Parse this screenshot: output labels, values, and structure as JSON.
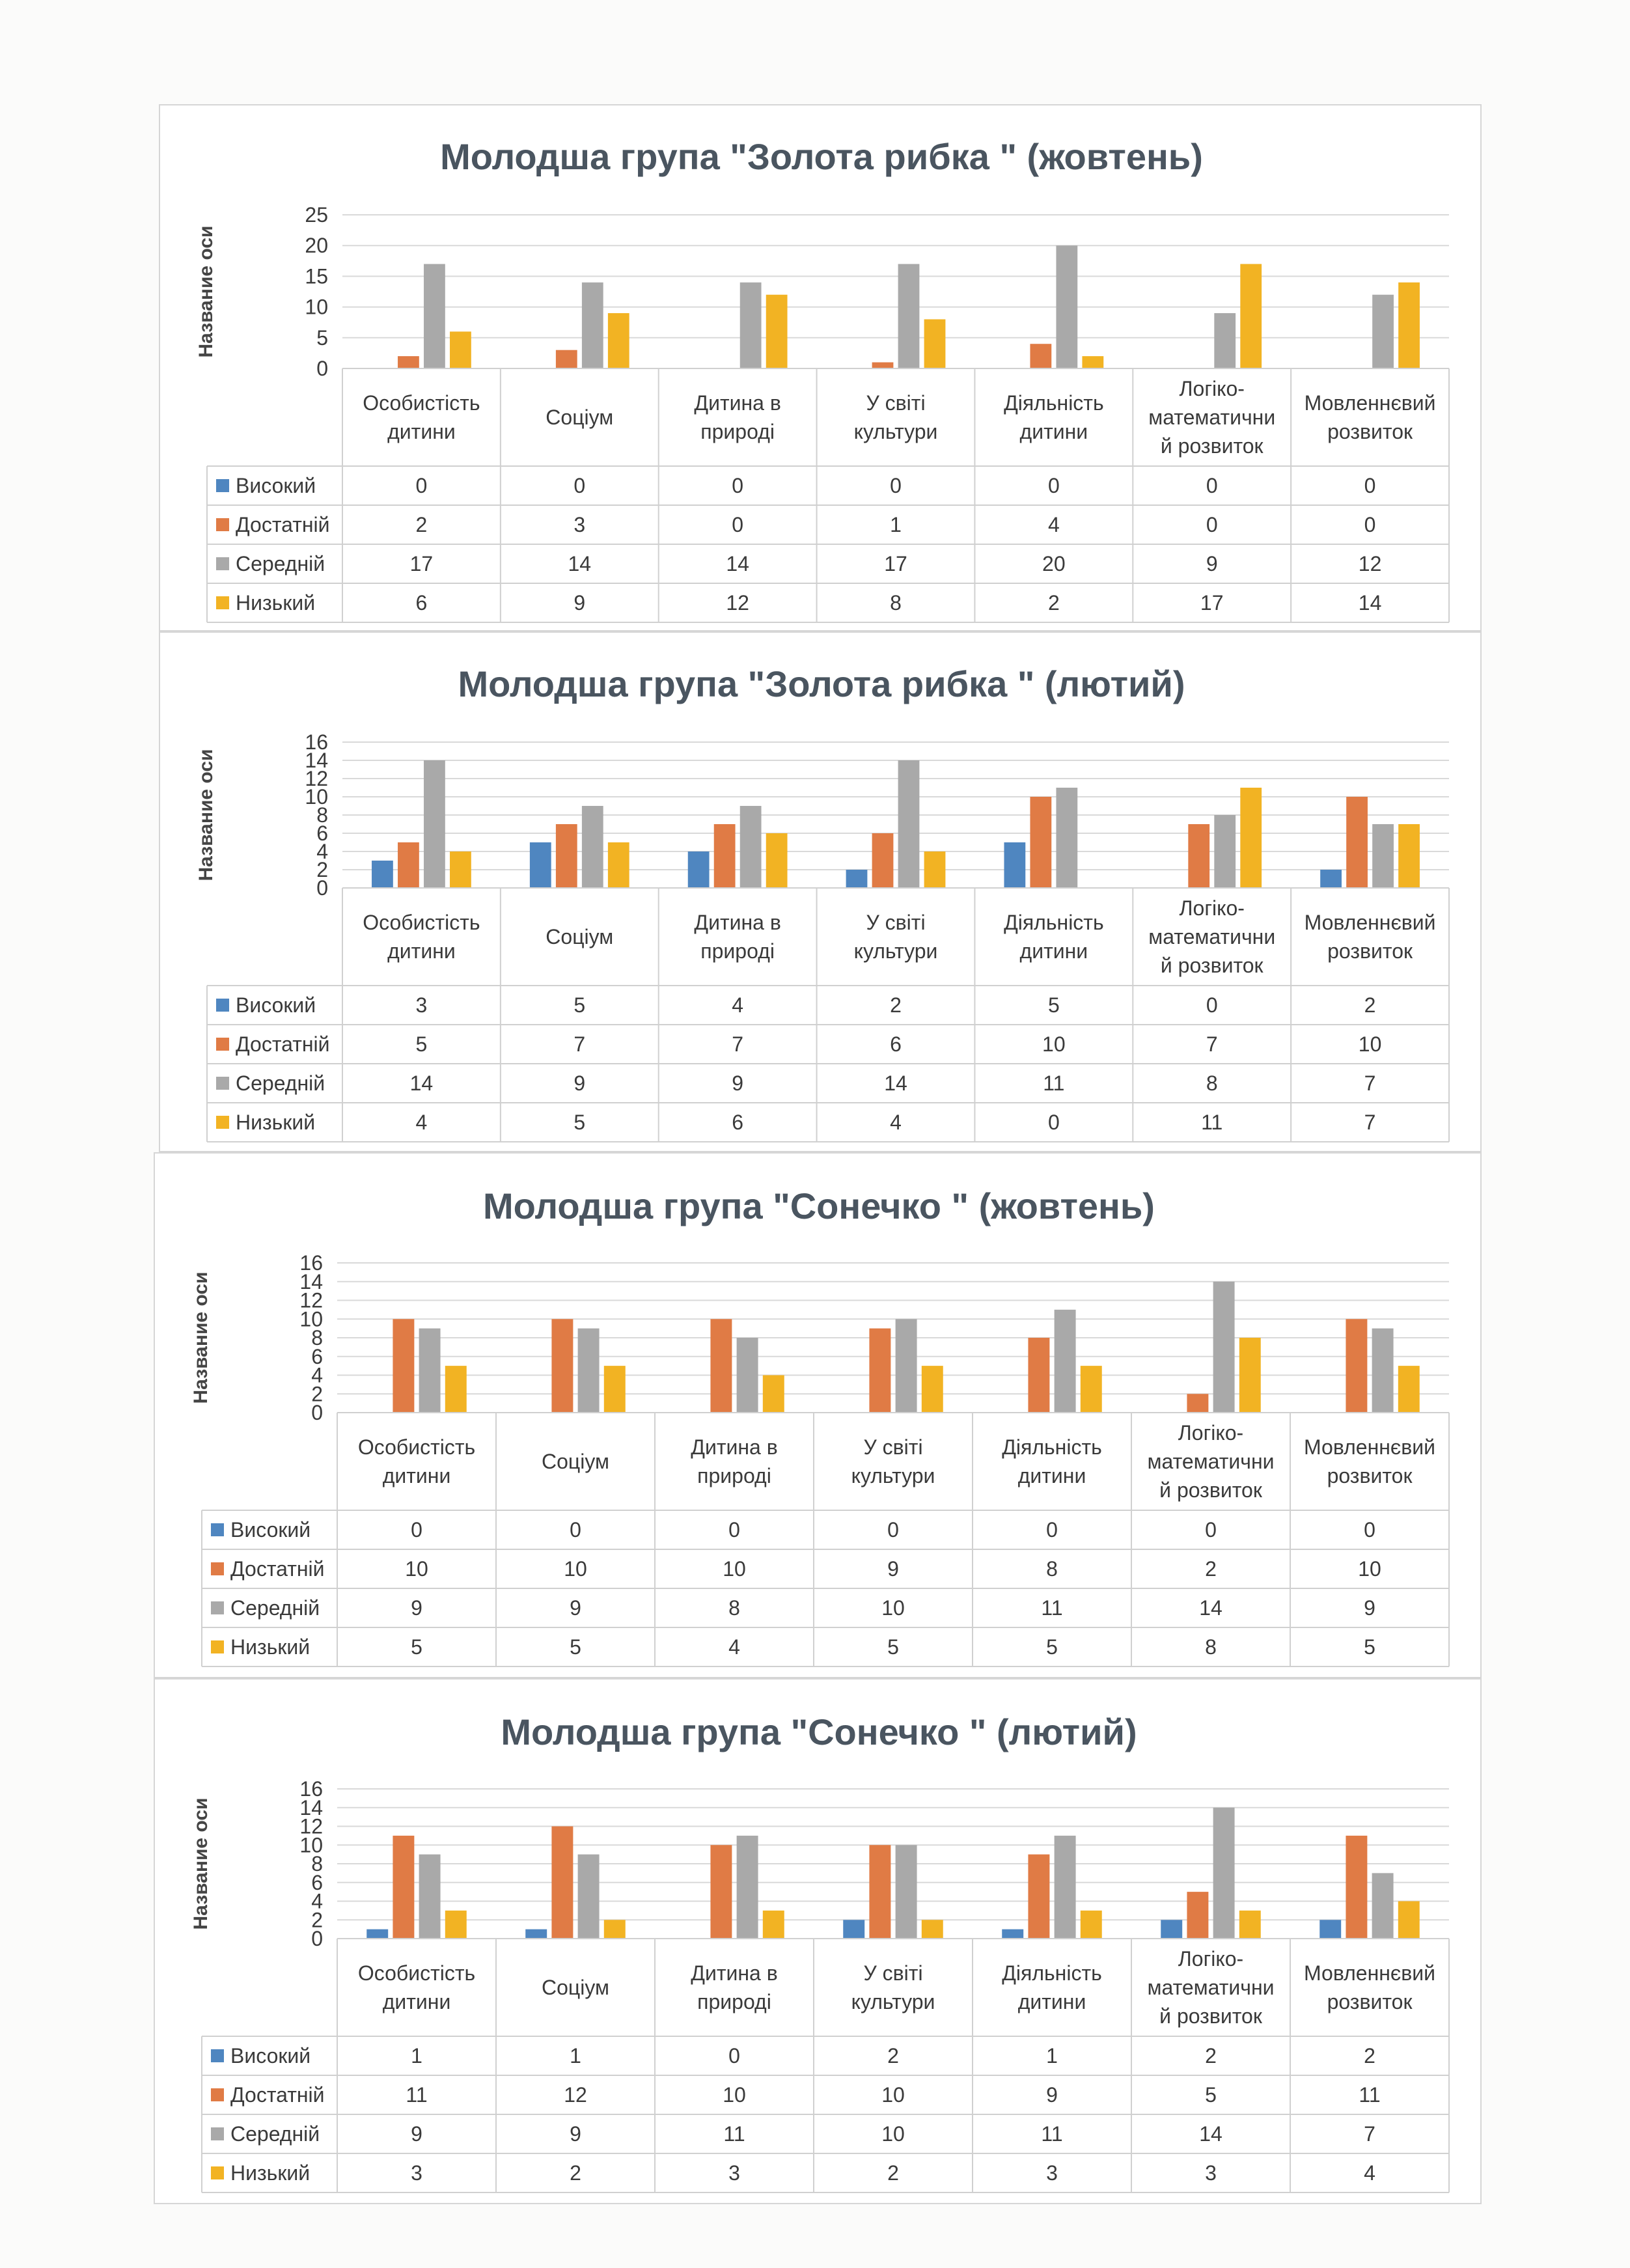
{
  "colors": {
    "Високий": "#4f86c0",
    "Достатній": "#e07b45",
    "Середній": "#a9a9a9",
    "Низький": "#f2b323"
  },
  "chart_data": [
    {
      "type": "bar",
      "title": "Молодша група \"Золота рибка \" (жовтень)",
      "ylabel": "Название оси",
      "xlabel": "",
      "ylim": [
        0,
        25
      ],
      "yticks": [
        0,
        5,
        10,
        15,
        20,
        25
      ],
      "grid": true,
      "legend": "table",
      "categories": [
        [
          "Особистість",
          "дитини"
        ],
        [
          "Соціум"
        ],
        [
          "Дитина в",
          "природі"
        ],
        [
          "У світі",
          "культури"
        ],
        [
          "Діяльність",
          "дитини"
        ],
        [
          "Логіко-",
          "математични",
          "й розвиток"
        ],
        [
          "Мовленнєвий",
          "розвиток"
        ]
      ],
      "series": [
        {
          "name": "Високий",
          "values": [
            0,
            0,
            0,
            0,
            0,
            0,
            0
          ]
        },
        {
          "name": "Достатній",
          "values": [
            2,
            3,
            0,
            1,
            4,
            0,
            0
          ]
        },
        {
          "name": "Середній",
          "values": [
            17,
            14,
            14,
            17,
            20,
            9,
            12
          ]
        },
        {
          "name": "Низький",
          "values": [
            6,
            9,
            12,
            8,
            2,
            17,
            14
          ]
        }
      ]
    },
    {
      "type": "bar",
      "title": "Молодша група \"Золота рибка \" (лютий)",
      "ylabel": "Название оси",
      "xlabel": "",
      "ylim": [
        0,
        16
      ],
      "yticks": [
        0,
        2,
        4,
        6,
        8,
        10,
        12,
        14,
        16
      ],
      "grid": true,
      "legend": "table",
      "categories": [
        [
          "Особистість",
          "дитини"
        ],
        [
          "Соціум"
        ],
        [
          "Дитина в",
          "природі"
        ],
        [
          "У світі",
          "культури"
        ],
        [
          "Діяльність",
          "дитини"
        ],
        [
          "Логіко-",
          "математични",
          "й розвиток"
        ],
        [
          "Мовленнєвий",
          "розвиток"
        ]
      ],
      "series": [
        {
          "name": "Високий",
          "values": [
            3,
            5,
            4,
            2,
            5,
            0,
            2
          ]
        },
        {
          "name": "Достатній",
          "values": [
            5,
            7,
            7,
            6,
            10,
            7,
            10
          ]
        },
        {
          "name": "Середній",
          "values": [
            14,
            9,
            9,
            14,
            11,
            8,
            7
          ]
        },
        {
          "name": "Низький",
          "values": [
            4,
            5,
            6,
            4,
            0,
            11,
            7
          ]
        }
      ]
    },
    {
      "type": "bar",
      "title": "Молодша група \"Сонечко \" (жовтень)",
      "ylabel": "Название оси",
      "xlabel": "",
      "ylim": [
        0,
        16
      ],
      "yticks": [
        0,
        2,
        4,
        6,
        8,
        10,
        12,
        14,
        16
      ],
      "grid": true,
      "legend": "table",
      "categories": [
        [
          "Особистість",
          "дитини"
        ],
        [
          "Соціум"
        ],
        [
          "Дитина в",
          "природі"
        ],
        [
          "У світі",
          "культури"
        ],
        [
          "Діяльність",
          "дитини"
        ],
        [
          "Логіко-",
          "математични",
          "й розвиток"
        ],
        [
          "Мовленнєвий",
          "розвиток"
        ]
      ],
      "series": [
        {
          "name": "Високий",
          "values": [
            0,
            0,
            0,
            0,
            0,
            0,
            0
          ]
        },
        {
          "name": "Достатній",
          "values": [
            10,
            10,
            10,
            9,
            8,
            2,
            10
          ]
        },
        {
          "name": "Середній",
          "values": [
            9,
            9,
            8,
            10,
            11,
            14,
            9
          ]
        },
        {
          "name": "Низький",
          "values": [
            5,
            5,
            4,
            5,
            5,
            8,
            5
          ]
        }
      ]
    },
    {
      "type": "bar",
      "title": "Молодша група \"Сонечко \" (лютий)",
      "ylabel": "Название оси",
      "xlabel": "",
      "ylim": [
        0,
        16
      ],
      "yticks": [
        0,
        2,
        4,
        6,
        8,
        10,
        12,
        14,
        16
      ],
      "grid": true,
      "legend": "table",
      "categories": [
        [
          "Особистість",
          "дитини"
        ],
        [
          "Соціум"
        ],
        [
          "Дитина в",
          "природі"
        ],
        [
          "У світі",
          "культури"
        ],
        [
          "Діяльність",
          "дитини"
        ],
        [
          "Логіко-",
          "математични",
          "й розвиток"
        ],
        [
          "Мовленнєвий",
          "розвиток"
        ]
      ],
      "series": [
        {
          "name": "Високий",
          "values": [
            1,
            1,
            0,
            2,
            1,
            2,
            2
          ]
        },
        {
          "name": "Достатній",
          "values": [
            11,
            12,
            10,
            10,
            9,
            5,
            11
          ]
        },
        {
          "name": "Середній",
          "values": [
            9,
            9,
            11,
            10,
            11,
            14,
            7
          ]
        },
        {
          "name": "Низький",
          "values": [
            3,
            2,
            3,
            2,
            3,
            3,
            4
          ]
        }
      ]
    }
  ]
}
